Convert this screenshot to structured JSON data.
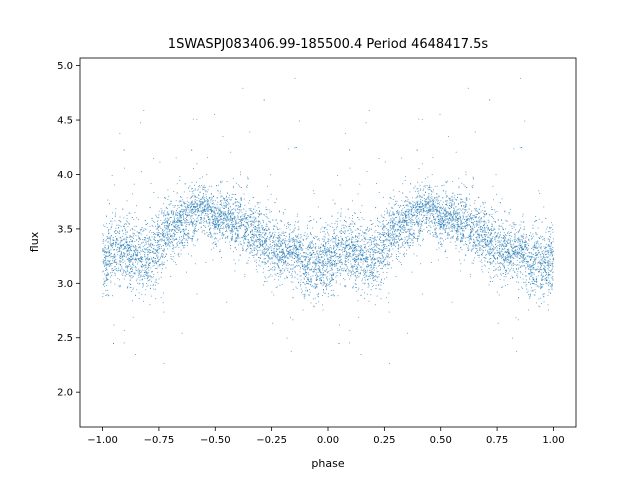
{
  "chart_data": {
    "type": "scatter",
    "title": "1SWASPJ083406.99-185500.4 Period 4648417.5s",
    "xlabel": "phase",
    "ylabel": "flux",
    "xlim": [
      -1.1,
      1.1
    ],
    "ylim": [
      1.68,
      5.07
    ],
    "x_ticks": [
      -1.0,
      -0.75,
      -0.5,
      -0.25,
      0.0,
      0.25,
      0.5,
      0.75,
      1.0
    ],
    "x_tick_labels": [
      "−1.00",
      "−0.75",
      "−0.50",
      "−0.25",
      "0.00",
      "0.25",
      "0.50",
      "0.75",
      "1.00"
    ],
    "y_ticks": [
      2.0,
      2.5,
      3.0,
      3.5,
      4.0,
      4.5,
      5.0
    ],
    "y_tick_labels": [
      "2.0",
      "2.5",
      "3.0",
      "3.5",
      "4.0",
      "4.5",
      "5.0"
    ],
    "grid": false,
    "marker_color": "#1f77b4",
    "phase_profile": {
      "phase": [
        0.0,
        0.05,
        0.1,
        0.15,
        0.2,
        0.25,
        0.3,
        0.35,
        0.4,
        0.45,
        0.5,
        0.55,
        0.6,
        0.65,
        0.7,
        0.75,
        0.8,
        0.85,
        0.9,
        0.95,
        1.0
      ],
      "median_flux": [
        3.2,
        3.3,
        3.3,
        3.25,
        3.25,
        3.35,
        3.5,
        3.55,
        3.65,
        3.7,
        3.6,
        3.6,
        3.55,
        3.5,
        3.4,
        3.35,
        3.3,
        3.3,
        3.2,
        3.15,
        3.2
      ],
      "spread": [
        0.3,
        0.28,
        0.28,
        0.3,
        0.3,
        0.3,
        0.25,
        0.25,
        0.22,
        0.2,
        0.22,
        0.22,
        0.25,
        0.25,
        0.25,
        0.25,
        0.25,
        0.25,
        0.28,
        0.3,
        0.3
      ]
    },
    "point_count": 9000
  }
}
